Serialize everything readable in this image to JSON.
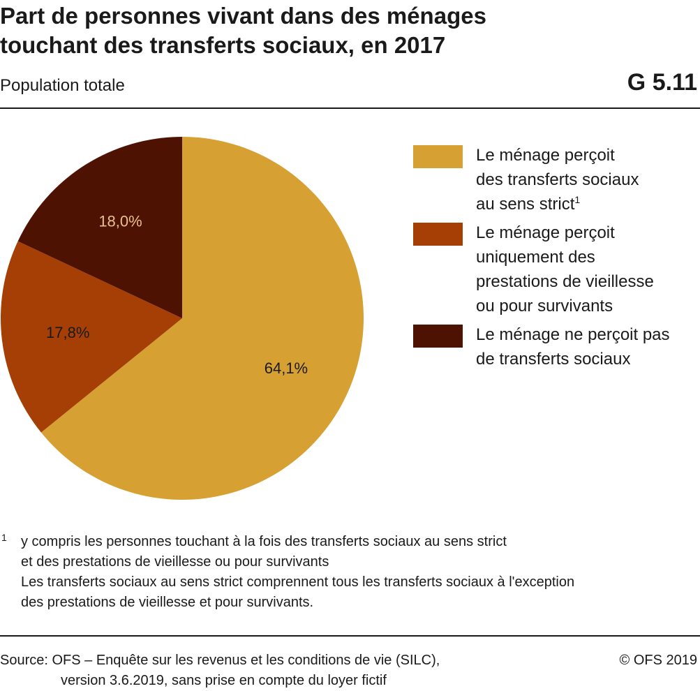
{
  "header": {
    "title_line1": "Part de personnes vivant dans des ménages",
    "title_line2": "touchant des transferts sociaux, en 2017",
    "subtitle": "Population totale",
    "chart_id": "G 5.11"
  },
  "legend": [
    {
      "label_lines": [
        "Le ménage perçoit",
        "des transferts sociaux",
        "au sens strict"
      ],
      "sup": "1"
    },
    {
      "label_lines": [
        "Le ménage perçoit",
        "uniquement des",
        "prestations de vieillesse",
        "ou pour survivants"
      ],
      "sup": ""
    },
    {
      "label_lines": [
        "Le ménage ne perçoit pas",
        "de transferts sociaux"
      ],
      "sup": ""
    }
  ],
  "footnote": {
    "mark": "1",
    "lines": [
      "y compris les personnes touchant à la fois des transferts sociaux au sens strict",
      "et des prestations de vieillesse ou pour survivants",
      "Les transferts sociaux au sens strict comprennent tous les transferts sociaux à l'exception",
      "des prestations de vieillesse et pour survivants."
    ]
  },
  "source": {
    "line1": "Source: OFS – Enquête sur les revenus et les conditions de vie (SILC),",
    "line2": "version 3.6.2019, sans prise en compte du loyer fictif"
  },
  "copyright": "© OFS 2019",
  "chart_data": {
    "type": "pie",
    "start": "12 o'clock",
    "direction": "clockwise",
    "slices": [
      {
        "value": 64.1,
        "label": "64,1%",
        "color": "#D7A032",
        "label_color": "#1a1a1a"
      },
      {
        "value": 17.8,
        "label": "17,8%",
        "color": "#A63F05",
        "label_color": "#1a1a1a"
      },
      {
        "value": 18.0,
        "label": "18,0%",
        "color": "#4E1203",
        "label_color": "#E8C08A"
      }
    ]
  }
}
